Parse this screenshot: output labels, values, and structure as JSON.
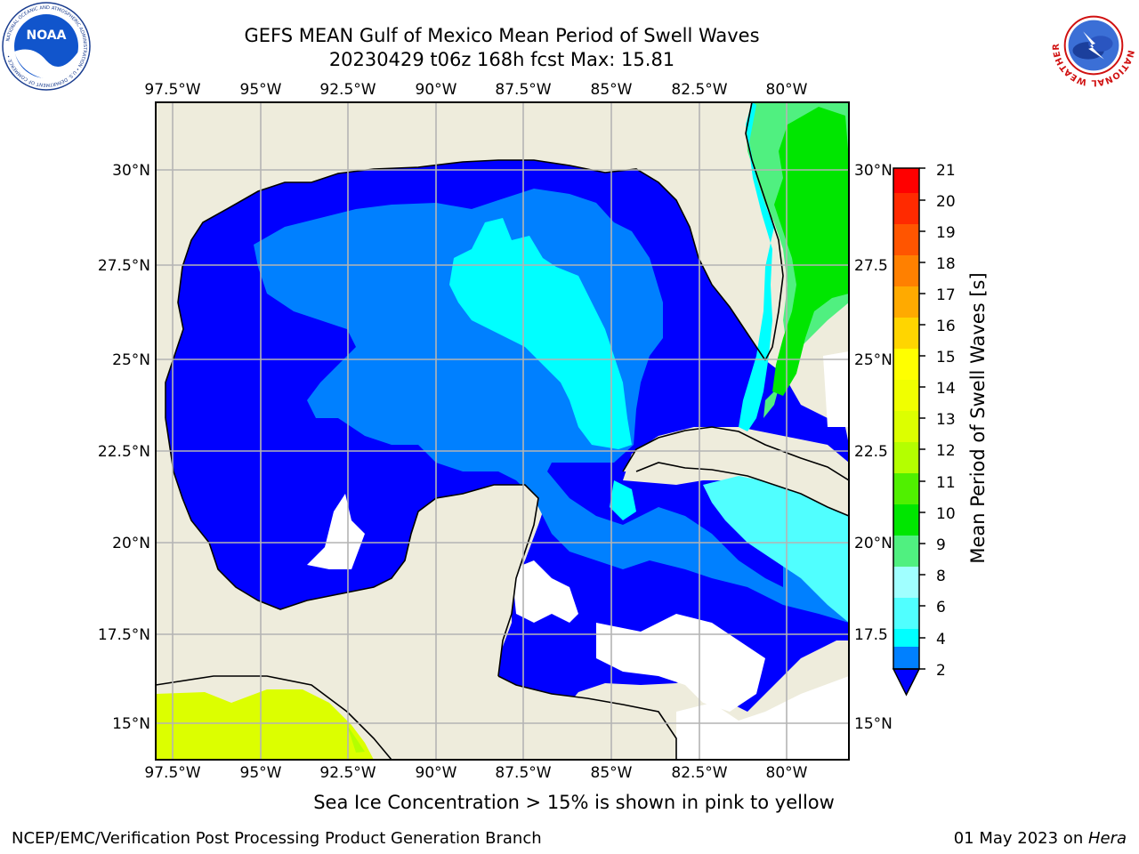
{
  "title": {
    "line1": "GEFS MEAN Gulf of Mexico Mean Period of Swell Waves",
    "line2": "20230429 t06z 168h fcst   Max: 15.81"
  },
  "map": {
    "lon_ticks": [
      "97.5°W",
      "95°W",
      "92.5°W",
      "90°W",
      "87.5°W",
      "85°W",
      "82.5°W",
      "80°W"
    ],
    "lat_ticks_left": [
      "30°N",
      "27.5°N",
      "25°N",
      "22.5°N",
      "20°N",
      "17.5°N",
      "15°N"
    ],
    "lat_ticks_right": [
      "30°N",
      "27.5",
      "25°N",
      "22.5",
      "20°N",
      "17.5",
      "15°N"
    ],
    "land_color": "#eeecdc",
    "grid_color": "#b4b4b4"
  },
  "colorbar": {
    "label": "Mean Period of Swell Waves [s]",
    "ticks": [
      "21",
      "20",
      "19",
      "18",
      "17",
      "16",
      "15",
      "14",
      "13",
      "12",
      "11",
      "10",
      "9",
      "8",
      "6",
      "4",
      "2"
    ],
    "colors": [
      "#ff0000",
      "#ff2a00",
      "#ff5500",
      "#ff8000",
      "#ffaa00",
      "#ffd500",
      "#ffff00",
      "#f0ff00",
      "#dcff00",
      "#b4ff00",
      "#50f000",
      "#00e600",
      "#50f080",
      "#a0ffff",
      "#50ffff",
      "#00ffff",
      "#00e0ff",
      "#0080ff"
    ],
    "under_color": "#0000ff"
  },
  "note": "Sea Ice Concentration > 15% is shown in pink to yellow",
  "footer": {
    "left": "NCEP/EMC/Verification Post Processing Product Generation Branch",
    "date": "01 May 2023 on ",
    "host": "Hera"
  },
  "logos": {
    "noaa_text": "NOAA",
    "noaa_ring": "NATIONAL OCEANIC AND ATMOSPHERIC ADMINISTRATION • U.S. DEPARTMENT OF COMMERCE •",
    "nws_ring": "NATIONAL WEATHER SERVICE"
  }
}
